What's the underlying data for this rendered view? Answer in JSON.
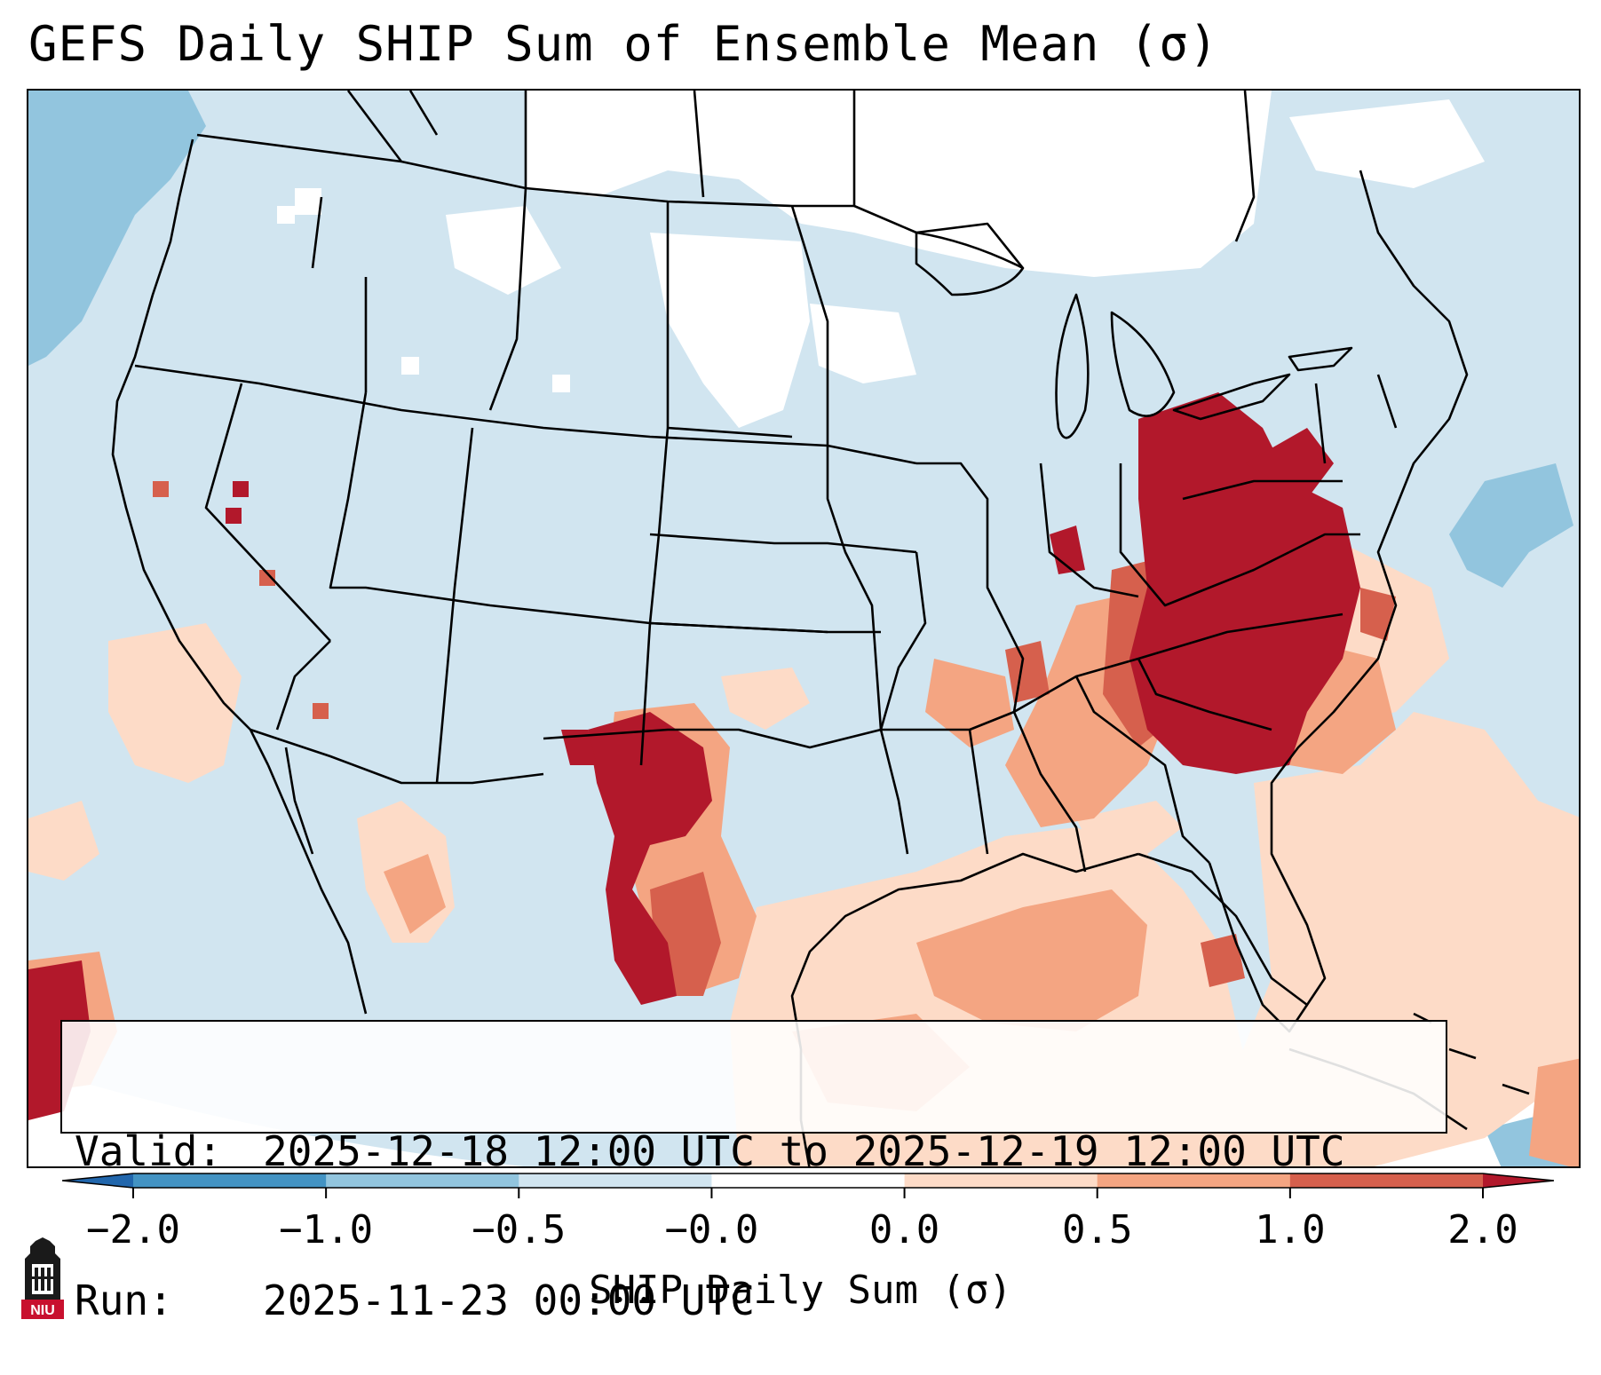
{
  "title": "GEFS Daily SHIP Sum of Ensemble Mean (σ)",
  "info": {
    "valid_label": "Valid:",
    "valid_value": "2025-12-18 12:00 UTC to 2025-12-19 12:00 UTC",
    "run_label": "Run:",
    "run_value": "2025-11-23 00:00 UTC"
  },
  "colorbar": {
    "title": "SHIP Daily Sum (σ)",
    "ticks": [
      "−2.0",
      "−1.0",
      "−0.5",
      "−0.0",
      "0.0",
      "0.5",
      "1.0",
      "2.0"
    ],
    "bins": [
      {
        "from": "−2.0",
        "to": "−1.0",
        "color": "#4393c3"
      },
      {
        "from": "−1.0",
        "to": "−0.5",
        "color": "#92c5de"
      },
      {
        "from": "−0.5",
        "to": "−0.0",
        "color": "#d1e5f0"
      },
      {
        "from": "−0.0",
        "to": "0.0",
        "color": "#ffffff"
      },
      {
        "from": "0.0",
        "to": "0.5",
        "color": "#fddbc7"
      },
      {
        "from": "0.5",
        "to": "1.0",
        "color": "#f4a582"
      },
      {
        "from": "1.0",
        "to": "2.0",
        "color": "#d6604d"
      }
    ],
    "under_color": "#2166ac",
    "over_color": "#b2182b"
  },
  "map": {
    "region": "Continental United States",
    "background_color": "#d1e5f0"
  },
  "logo": {
    "text": "NIU",
    "icon": "university-building-icon",
    "color": "#c8102e"
  }
}
